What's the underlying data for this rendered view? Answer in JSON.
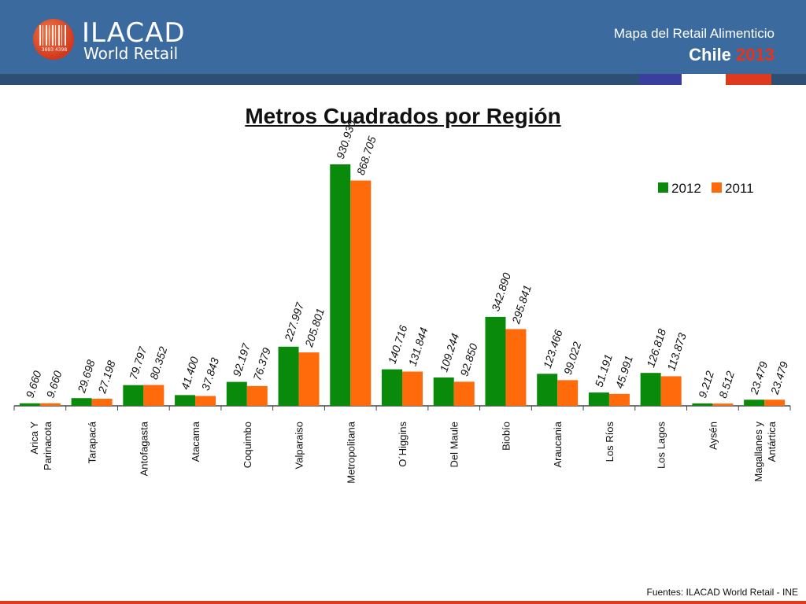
{
  "header": {
    "logo_name": "ILACAD",
    "logo_sub": "World Retail",
    "logo_numbers": "3693 4398",
    "title_line1": "Mapa del Retail Alimenticio",
    "country": "Chile",
    "year": "2013"
  },
  "colors": {
    "header_bg": "#3a6a9e",
    "series_2012": "#0a8a0a",
    "series_2011": "#ff6a0a",
    "accent_red": "#e03a1e"
  },
  "chart_data": {
    "type": "bar",
    "title": "Metros Cuadrados por Región",
    "categories": [
      "Arica Y\nParinacota",
      "Tarapacá",
      "Antofagasta",
      "Atacama",
      "Coquimbo",
      "Valparaiso",
      "Metropolitana",
      "O´Higgins",
      "Del Maule",
      "Biobío",
      "Araucania",
      "Los Ríos",
      "Los Lagos",
      "Aysén",
      "Magallanes y\nAntártica"
    ],
    "series": [
      {
        "name": "2012",
        "values": [
          9660,
          29698,
          79797,
          41400,
          92197,
          227997,
          930930,
          140716,
          109244,
          342890,
          123466,
          51191,
          126818,
          9212,
          23479
        ],
        "labels": [
          "9.660",
          "29.698",
          "79.797",
          "41.400",
          "92.197",
          "227.997",
          "930.930",
          "140.716",
          "109.244",
          "342.890",
          "123.466",
          "51.191",
          "126.818",
          "9.212",
          "23.479"
        ]
      },
      {
        "name": "2011",
        "values": [
          9660,
          27198,
          80352,
          37843,
          76379,
          205801,
          868705,
          131844,
          92850,
          295841,
          99022,
          45991,
          113873,
          8512,
          23479
        ],
        "labels": [
          "9.660",
          "27.198",
          "80.352",
          "37.843",
          "76.379",
          "205.801",
          "868.705",
          "131.844",
          "92.850",
          "295.841",
          "99.022",
          "45.991",
          "113.873",
          "8.512",
          "23.479"
        ]
      }
    ],
    "ylim": [
      0,
      930930
    ],
    "legend": "top-right",
    "grid": false
  },
  "footer": {
    "source": "Fuentes: ILACAD World Retail - INE"
  }
}
